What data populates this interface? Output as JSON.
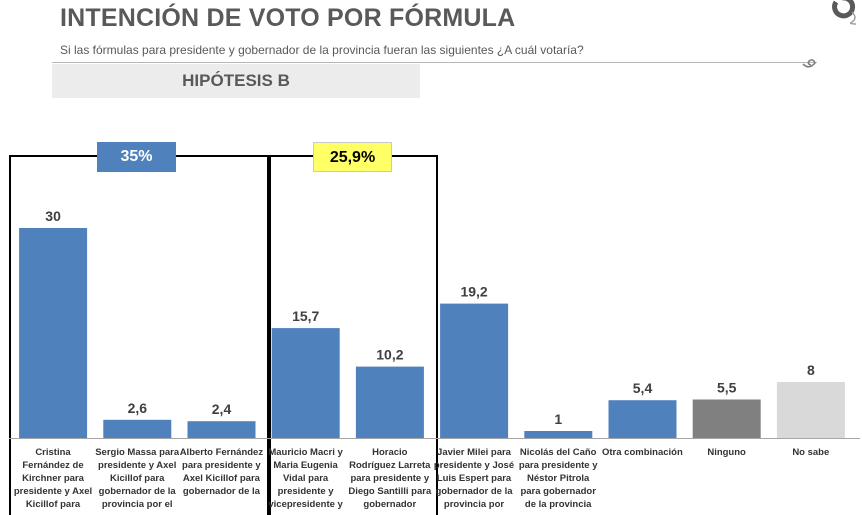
{
  "header": {
    "title": "INTENCIÓN DE VOTO POR FÓRMULA",
    "subtitle": "Si las fórmulas para presidente y gobernador de la provincia fueran las siguientes ¿A cuál votaría?",
    "hypothesis": "HIPÓTESIS B"
  },
  "groups": [
    {
      "label": "35%",
      "color": "#4f81bd"
    },
    {
      "label": "25,9%",
      "color": "#ffff66"
    }
  ],
  "chart_data": {
    "type": "bar",
    "title": "INTENCIÓN DE VOTO POR FÓRMULA",
    "ylim": [
      0,
      30
    ],
    "grid": false,
    "categories": [
      "Cristina Fernández de Kirchner para presidente y Axel Kicillof para",
      "Sergio Massa para presidente y Axel Kicillof para gobernador de la provincia por el",
      "Alberto Fernández para presidente y Axel Kicillof para gobernador de la",
      "Mauricio Macri y Maria Eugenia Vidal para presidente y vicepresidente y",
      "Horacio Rodríguez Larreta para presidente y Diego Santilli para gobernador",
      "Javier Milei para presidente y José Luis Espert para gobernador de la provincia por",
      "Nicolás del Caño para presidente y Néstor Pitrola para gobernador de la provincia",
      "Otra combinación",
      "Ninguno",
      "No sabe"
    ],
    "values": [
      30,
      2.6,
      2.4,
      15.7,
      10.2,
      19.2,
      1,
      5.4,
      5.5,
      8
    ],
    "value_labels": [
      "30",
      "2,6",
      "2,4",
      "15,7",
      "10,2",
      "19,2",
      "1",
      "5,4",
      "5,5",
      "8"
    ],
    "bar_colors": [
      "#4f81bd",
      "#4f81bd",
      "#4f81bd",
      "#4f81bd",
      "#4f81bd",
      "#4f81bd",
      "#4f81bd",
      "#4f81bd",
      "#808080",
      "#d9d9d9"
    ]
  }
}
